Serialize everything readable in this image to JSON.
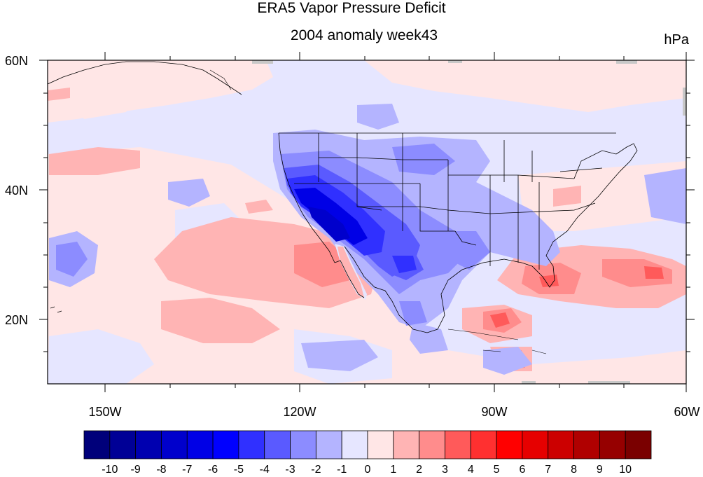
{
  "title": "ERA5 Vapor Pressure Deficit",
  "subtitle": "2004 anomaly week43",
  "units": "hPa",
  "axes": {
    "lon_ticks": [
      "150W",
      "120W",
      "90W",
      "60W"
    ],
    "lat_ticks": [
      "60N",
      "40N",
      "20N"
    ],
    "lon_range": [
      -159,
      -61
    ],
    "lat_range": [
      10,
      60
    ]
  },
  "colorbar": {
    "labels": [
      "-10",
      "-9",
      "-8",
      "-7",
      "-6",
      "-5",
      "-4",
      "-3",
      "-2",
      "-1",
      "0",
      "1",
      "2",
      "3",
      "4",
      "5",
      "6",
      "7",
      "8",
      "9",
      "10"
    ],
    "colors": [
      "#00007a",
      "#000096",
      "#0000b0",
      "#0000cc",
      "#0000e6",
      "#0000ff",
      "#3030ff",
      "#5a5aff",
      "#8c8cff",
      "#b4b4ff",
      "#e6e6ff",
      "#ffe6e6",
      "#ffb4b4",
      "#ff8c8c",
      "#ff5a5a",
      "#ff3030",
      "#ff0000",
      "#e60000",
      "#cc0000",
      "#b00000",
      "#960000",
      "#7a0000"
    ]
  },
  "colors": {
    "light_blue": "#e6e6ff",
    "light_red": "#ffe6e6"
  }
}
